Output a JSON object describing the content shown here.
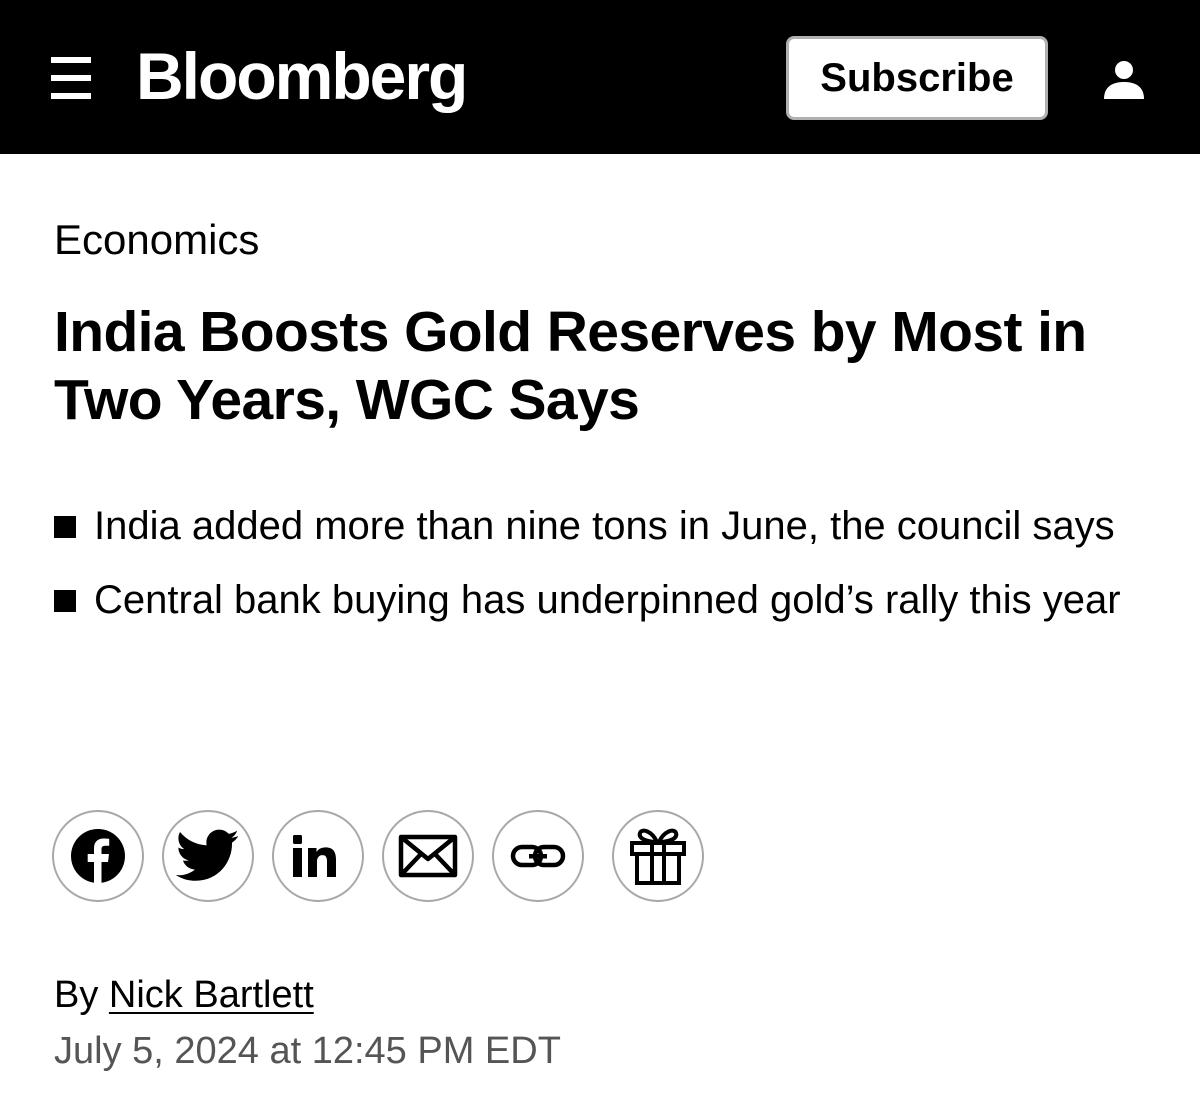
{
  "header": {
    "brand": "Bloomberg",
    "subscribe_label": "Subscribe",
    "menu_icon": "hamburger-menu-icon",
    "account_icon": "user-account-icon",
    "background": "#000000"
  },
  "article": {
    "category": "Economics",
    "headline": "India Boosts Gold Reserves by Most in Two Years, WGC Says",
    "bullets": [
      {
        "text": "India added more than nine tons in June, the council says"
      },
      {
        "text": "Central bank buying has underpinned gold’s rally this year"
      }
    ],
    "share_icons": [
      "facebook-icon",
      "twitter-icon",
      "linkedin-icon",
      "email-icon",
      "link-icon",
      "gift-icon"
    ],
    "byline_prefix": "By",
    "author": "Nick Bartlett",
    "published": "July 5, 2024 at 12:45 PM EDT"
  }
}
